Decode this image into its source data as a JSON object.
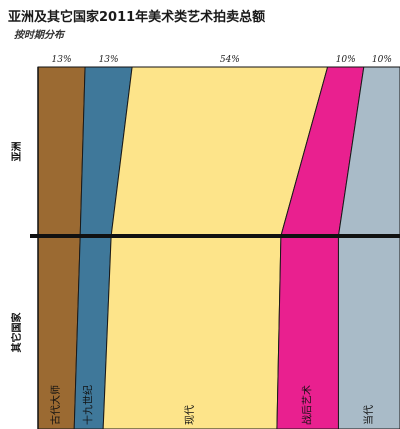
{
  "title": "亚洲及其它国家2011年美术类艺术拍卖总额",
  "subtitle": "按时期分布",
  "chart_data": {
    "type": "area",
    "layout": "stacked-percent-two-rows",
    "categories": [
      "古代大师",
      "十九世纪",
      "现代",
      "战后艺术",
      "当代"
    ],
    "colors": [
      "#9b6a32",
      "#3f789a",
      "#fde48a",
      "#e9208f",
      "#a9bbc8"
    ],
    "top_labels": [
      "13%",
      "13%",
      "54%",
      "10%",
      "10%"
    ],
    "rows": [
      {
        "name": "亚洲",
        "values": [
          13,
          13,
          54,
          10,
          10
        ]
      },
      {
        "name": "其它国家",
        "values": [
          10,
          8,
          48,
          17,
          17
        ]
      }
    ],
    "category_labels_visible": [
      "古代大师",
      "十九世纪",
      "现代",
      "战后艺术",
      "当代"
    ]
  }
}
